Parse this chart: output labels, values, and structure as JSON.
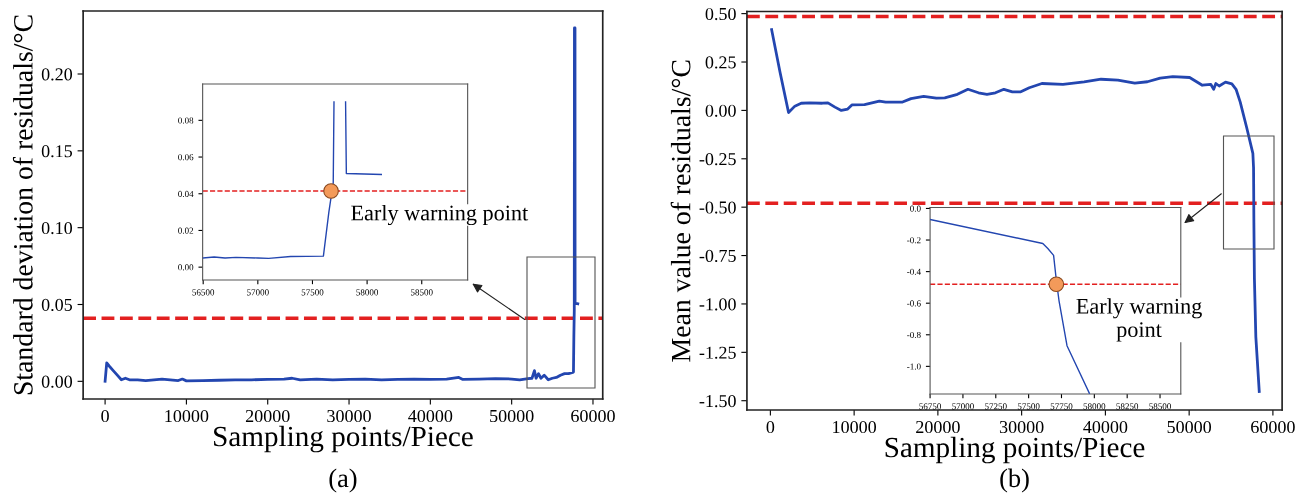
{
  "chart_data": [
    {
      "type": "line",
      "xlabel": "Sampling points/Piece",
      "ylabel": "Standard deviation of residuals/°C",
      "xlim": [
        -2700,
        61200
      ],
      "xticks": [
        0,
        10000,
        20000,
        30000,
        40000,
        50000,
        60000
      ],
      "ylim": [
        -0.0115,
        0.241
      ],
      "yticks": [
        {
          "value": 0,
          "label": "0.00"
        },
        {
          "value": 0.05,
          "label": "0.05"
        },
        {
          "value": 0.1,
          "label": "0.10"
        },
        {
          "value": 0.15,
          "label": "0.15"
        },
        {
          "value": 0.2,
          "label": "0.20"
        }
      ],
      "grid": false,
      "series": [
        {
          "color": "#2346b0",
          "x": [
            0,
            200,
            500,
            1000,
            1500,
            2000,
            2500,
            3000,
            4000,
            5000,
            6000,
            7000,
            8000,
            9000,
            9500,
            10000,
            12000,
            14000,
            16000,
            18000,
            20000,
            22000,
            23000,
            24000,
            26000,
            28000,
            30000,
            32000,
            34000,
            36000,
            38000,
            40000,
            42000,
            43500,
            44000,
            46000,
            48000,
            50000,
            51000,
            52000,
            52500,
            52800,
            53000,
            53300,
            53600,
            54000,
            54500,
            55000,
            55500,
            56000,
            56500,
            57000,
            57600,
            57650,
            57700,
            57720,
            57790,
            57800,
            58130
          ],
          "values": [
            0.0,
            0.012,
            0.01,
            0.007,
            0.004,
            0.001,
            0.002,
            0.001,
            0.001,
            0.0005,
            0.001,
            0.0015,
            0.001,
            0.0005,
            0.0015,
            0.0003,
            0.0005,
            0.0007,
            0.001,
            0.001,
            0.0012,
            0.0015,
            0.002,
            0.001,
            0.0015,
            0.001,
            0.0012,
            0.0015,
            0.001,
            0.0012,
            0.0015,
            0.0012,
            0.0015,
            0.0025,
            0.0012,
            0.0015,
            0.0018,
            0.0015,
            0.001,
            0.0018,
            0.002,
            0.007,
            0.002,
            0.005,
            0.002,
            0.004,
            0.001,
            0.002,
            0.0025,
            0.004,
            0.005,
            0.005,
            0.006,
            0.03,
            0.046,
            0.23,
            0.23,
            0.051,
            0.0505
          ]
        }
      ],
      "ref_lines": [
        {
          "axis": "y",
          "value": 0.041,
          "color": "#e32020",
          "line_style": "dashed"
        }
      ],
      "annotations": [
        "(a)"
      ]
    },
    {
      "type": "line",
      "xlim": [
        56495,
        58920
      ],
      "xticks": [
        56500,
        57000,
        57500,
        58000,
        58500
      ],
      "ylim": [
        -0.007,
        0.0998
      ],
      "yticks": [
        {
          "value": 0,
          "label": "0.00"
        },
        {
          "value": 0.02,
          "label": "0.02"
        },
        {
          "value": 0.04,
          "label": "0.04"
        },
        {
          "value": 0.06,
          "label": "0.06"
        },
        {
          "value": 0.08,
          "label": "0.08"
        }
      ],
      "grid": false,
      "series": [
        {
          "color": "#2346b0",
          "x": [
            56500,
            56600,
            56700,
            56800,
            57000,
            57100,
            57300,
            57600,
            57650,
            57690,
            57697,
            57750,
            57803,
            57810,
            58130
          ],
          "values": [
            0.005,
            0.0055,
            0.005,
            0.0053,
            0.005,
            0.0048,
            0.0058,
            0.006,
            0.03,
            0.046,
            0.09,
            null,
            0.09,
            0.051,
            0.0505
          ]
        },
        {
          "type": "scatter",
          "marker": "circle",
          "color": "#f39a5a",
          "x": [
            57670
          ],
          "values": [
            0.0415
          ]
        }
      ],
      "ref_lines": [
        {
          "axis": "y",
          "value": 0.0415,
          "color": "#e32020",
          "line_style": "dashed"
        }
      ],
      "annotations": [
        {
          "text": "Early warning point",
          "x": 57670,
          "y": 0.0415
        }
      ]
    },
    {
      "type": "line",
      "xlabel": "Sampling points/Piece",
      "ylabel": "Mean value of residuals/°C",
      "xlim": [
        -2800,
        61100
      ],
      "xticks": [
        0,
        10000,
        20000,
        30000,
        40000,
        50000,
        60000
      ],
      "ylim": [
        -1.548,
        0.511
      ],
      "yticks": [
        {
          "value": -1.5,
          "label": "-1.50"
        },
        {
          "value": -1.25,
          "label": "-1.25"
        },
        {
          "value": -1.0,
          "label": "-1.00"
        },
        {
          "value": -0.75,
          "label": "-0.75"
        },
        {
          "value": -0.5,
          "label": "-0.50"
        },
        {
          "value": -0.25,
          "label": "-0.25"
        },
        {
          "value": 0,
          "label": "0.00"
        },
        {
          "value": 0.25,
          "label": "0.25"
        },
        {
          "value": 0.5,
          "label": "0.50"
        }
      ],
      "grid": false,
      "series": [
        {
          "color": "#2346b0",
          "x": [
            150,
            1160,
            2170,
            2920,
            3680,
            4690,
            6200,
            6870,
            7710,
            8470,
            9230,
            9730,
            11240,
            13010,
            13770,
            15780,
            16790,
            18300,
            19810,
            20820,
            22330,
            23590,
            24850,
            25860,
            26870,
            27880,
            28890,
            29900,
            30910,
            32420,
            34940,
            37460,
            39480,
            41490,
            43510,
            45020,
            46540,
            48050,
            50060,
            51570,
            52580,
            52930,
            53190,
            53590,
            54340,
            55100,
            55600,
            56100,
            56860,
            57608,
            57690,
            57731,
            57792,
            57962,
            58370
          ],
          "values": [
            0.417,
            0.196,
            -0.011,
            0.022,
            0.037,
            0.039,
            0.037,
            0.039,
            0.017,
            0.0,
            0.007,
            0.028,
            0.03,
            0.048,
            0.043,
            0.043,
            0.061,
            0.072,
            0.063,
            0.065,
            0.083,
            0.109,
            0.091,
            0.083,
            0.091,
            0.109,
            0.096,
            0.096,
            0.117,
            0.139,
            0.135,
            0.148,
            0.161,
            0.157,
            0.141,
            0.148,
            0.167,
            0.174,
            0.17,
            0.13,
            0.135,
            0.109,
            0.139,
            0.126,
            0.146,
            0.137,
            0.109,
            0.043,
            -0.087,
            -0.222,
            -0.297,
            -0.583,
            -0.869,
            -1.17,
            -1.452
          ]
        }
      ],
      "ref_lines": [
        {
          "axis": "y",
          "value": 0.485,
          "color": "#e32020",
          "line_style": "dashed"
        },
        {
          "axis": "y",
          "value": -0.48,
          "color": "#e32020",
          "line_style": "dashed"
        }
      ],
      "annotations": [
        "(b)"
      ]
    },
    {
      "type": "line",
      "xlim": [
        56750,
        58658
      ],
      "xticks": [
        56750,
        57000,
        57250,
        57500,
        57750,
        58000,
        58250,
        58500
      ],
      "ylim": [
        -1.175,
        0.006
      ],
      "yticks": [
        {
          "value": -1.0,
          "label": "-1.0"
        },
        {
          "value": -0.8,
          "label": "-0.8"
        },
        {
          "value": -0.6,
          "label": "-0.6"
        },
        {
          "value": -0.4,
          "label": "-0.4"
        },
        {
          "value": -0.2,
          "label": "-0.2"
        },
        {
          "value": 0,
          "label": "0.0"
        }
      ],
      "grid": false,
      "series": [
        {
          "color": "#2346b0",
          "x": [
            56750,
            57608,
            57646,
            57690,
            57711,
            57731,
            57792,
            57962
          ],
          "values": [
            -0.07,
            -0.222,
            -0.254,
            -0.297,
            -0.456,
            -0.583,
            -0.869,
            -1.17
          ]
        },
        {
          "type": "scatter",
          "marker": "circle",
          "color": "#f39a5a",
          "x": [
            57711
          ],
          "values": [
            -0.48
          ]
        }
      ],
      "ref_lines": [
        {
          "axis": "y",
          "value": -0.48,
          "color": "#e32020",
          "line_style": "dashed"
        }
      ],
      "annotations": [
        {
          "text": "Early warning\npoint",
          "x": 57711,
          "y": -0.48
        }
      ]
    }
  ]
}
